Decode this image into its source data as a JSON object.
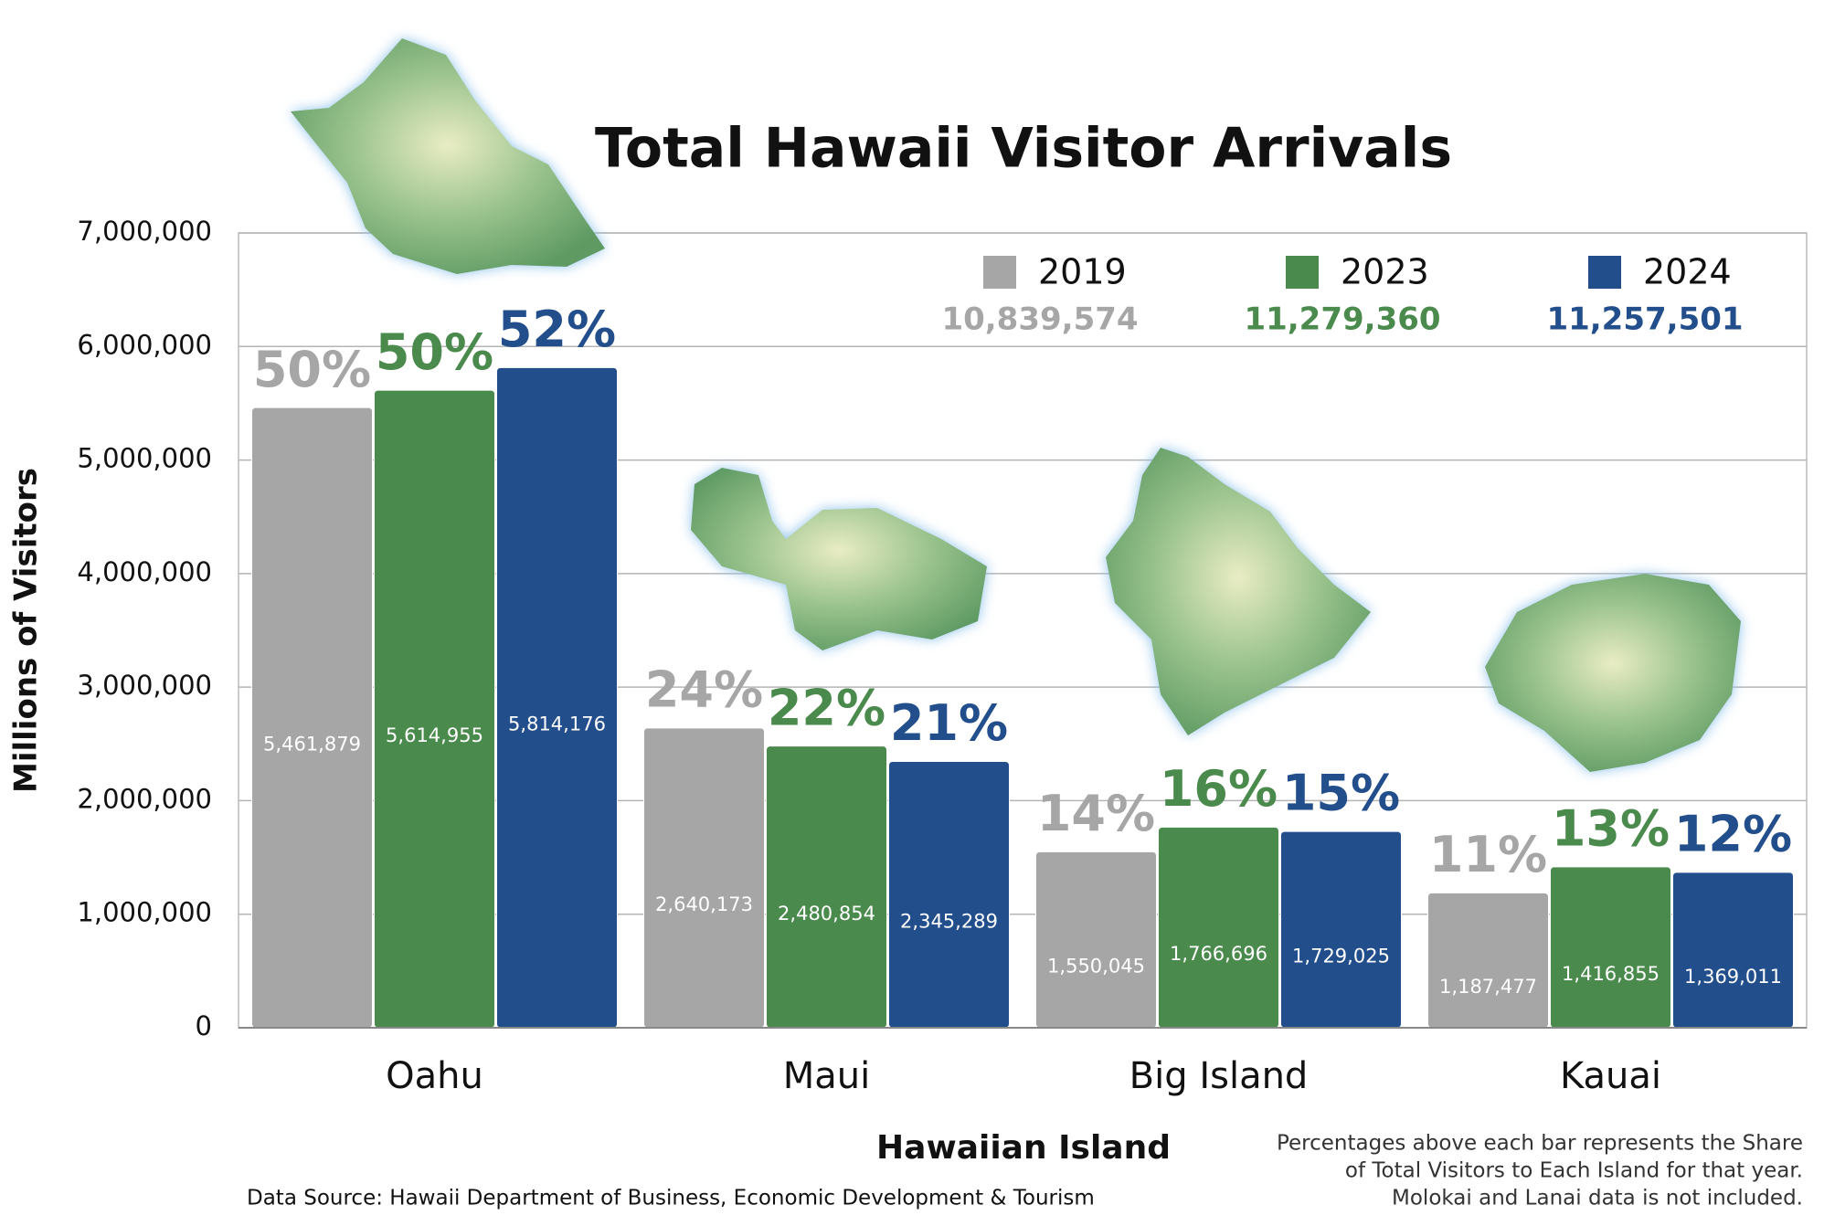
{
  "chart_data": {
    "type": "bar",
    "title": "Total Hawaii Visitor Arrivals",
    "x_label": "Hawaiian Island",
    "y_label": "Millions of Visitors",
    "categories": [
      "Oahu",
      "Maui",
      "Big Island",
      "Kauai"
    ],
    "series": [
      {
        "name": "2019",
        "color": "#a6a6a6",
        "total": 10839574,
        "total_label": "10,839,574",
        "values": [
          5461879,
          2640173,
          1550045,
          1187477
        ],
        "value_labels": [
          "5,461,879",
          "2,640,173",
          "1,550,045",
          "1,187,477"
        ],
        "shares": [
          50,
          24,
          14,
          11
        ],
        "share_labels": [
          "50%",
          "24%",
          "14%",
          "11%"
        ]
      },
      {
        "name": "2023",
        "color": "#4a8a4c",
        "total": 11279360,
        "total_label": "11,279,360",
        "values": [
          5614955,
          2480854,
          1766696,
          1416855
        ],
        "value_labels": [
          "5,614,955",
          "2,480,854",
          "1,766,696",
          "1,416,855"
        ],
        "shares": [
          50,
          22,
          16,
          13
        ],
        "share_labels": [
          "50%",
          "22%",
          "16%",
          "13%"
        ]
      },
      {
        "name": "2024",
        "color": "#224e8c",
        "total": 11257501,
        "total_label": "11,257,501",
        "values": [
          5814176,
          2345289,
          1729025,
          1369011
        ],
        "value_labels": [
          "5,814,176",
          "2,345,289",
          "1,729,025",
          "1,369,011"
        ],
        "shares": [
          52,
          21,
          15,
          12
        ],
        "share_labels": [
          "52%",
          "21%",
          "15%",
          "12%"
        ]
      }
    ],
    "ylim": [
      0,
      7000000
    ],
    "yticks": [
      0,
      {
        "value": 1000000,
        "label": "1,000,000"
      },
      {
        "value": 2000000,
        "label": "2,000,000"
      },
      {
        "value": 3000000,
        "label": "3,000,000"
      },
      {
        "value": 4000000,
        "label": "4,000,000"
      },
      {
        "value": 5000000,
        "label": "5,000,000"
      },
      {
        "value": 6000000,
        "label": "6,000,000"
      },
      {
        "value": 7000000,
        "label": "7,000,000"
      }
    ],
    "grid": true,
    "source": "Data Source: Hawaii Department of Business, Economic Development & Tourism",
    "notes": [
      "Percentages above each bar represents the Share",
      "of Total Visitors to Each Island for that year.",
      "Molokai and Lanai data is not included."
    ]
  }
}
